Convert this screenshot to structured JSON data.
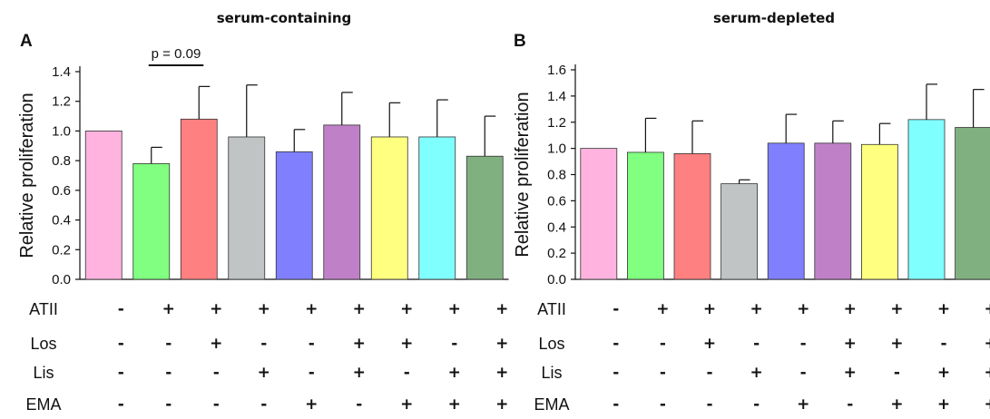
{
  "chart_data": [
    {
      "type": "bar",
      "panel_label": "A",
      "title": "serum-containing",
      "ylabel": "Relative proliferation",
      "ylim": [
        0,
        1.4
      ],
      "yticks": [
        "0.0",
        "0.2",
        "0.4",
        "0.6",
        "0.8",
        "1.0",
        "1.2",
        "1.4"
      ],
      "values": [
        1.0,
        0.78,
        1.08,
        0.96,
        0.86,
        1.04,
        0.96,
        0.96,
        0.83
      ],
      "errors": [
        0.0,
        0.11,
        0.22,
        0.35,
        0.15,
        0.22,
        0.23,
        0.25,
        0.27
      ],
      "colors": [
        "#ffb3de",
        "#80ff80",
        "#ff8080",
        "#c0c4c4",
        "#8080ff",
        "#c080c8",
        "#ffff80",
        "#80ffff",
        "#80b080"
      ],
      "annotation": {
        "text": "p = 0.09",
        "from": 1,
        "to": 2
      },
      "treatment_rows": [
        {
          "label": "ATII",
          "marks": [
            "-",
            "+",
            "+",
            "+",
            "+",
            "+",
            "+",
            "+",
            "+"
          ]
        },
        {
          "label": "Los",
          "marks": [
            "-",
            "-",
            "+",
            "-",
            "-",
            "+",
            "+",
            "-",
            "+"
          ]
        },
        {
          "label": "Lis",
          "marks": [
            "-",
            "-",
            "-",
            "+",
            "-",
            "+",
            "-",
            "+",
            "+"
          ]
        },
        {
          "label": "EMA",
          "marks": [
            "-",
            "-",
            "-",
            "-",
            "+",
            "-",
            "+",
            "+",
            "+"
          ]
        }
      ]
    },
    {
      "type": "bar",
      "panel_label": "B",
      "title": "serum-depleted",
      "ylabel": "Relative proliferation",
      "ylim": [
        0,
        1.6
      ],
      "yticks": [
        "0.0",
        "0.2",
        "0.4",
        "0.6",
        "0.8",
        "1.0",
        "1.2",
        "1.4",
        "1.6"
      ],
      "values": [
        1.0,
        0.97,
        0.96,
        0.73,
        1.04,
        1.04,
        1.03,
        1.22,
        1.16
      ],
      "errors": [
        0.0,
        0.26,
        0.25,
        0.03,
        0.22,
        0.17,
        0.16,
        0.27,
        0.29
      ],
      "colors": [
        "#ffb3de",
        "#80ff80",
        "#ff8080",
        "#c0c4c4",
        "#8080ff",
        "#c080c8",
        "#ffff80",
        "#80ffff",
        "#80b080"
      ],
      "treatment_rows": [
        {
          "label": "ATII",
          "marks": [
            "-",
            "+",
            "+",
            "+",
            "+",
            "+",
            "+",
            "+",
            "+"
          ]
        },
        {
          "label": "Los",
          "marks": [
            "-",
            "-",
            "+",
            "-",
            "-",
            "+",
            "+",
            "-",
            "+"
          ]
        },
        {
          "label": "Lis",
          "marks": [
            "-",
            "-",
            "-",
            "+",
            "-",
            "+",
            "-",
            "+",
            "+"
          ]
        },
        {
          "label": "EMA",
          "marks": [
            "-",
            "-",
            "-",
            "-",
            "+",
            "-",
            "+",
            "+",
            "+"
          ]
        }
      ]
    }
  ]
}
